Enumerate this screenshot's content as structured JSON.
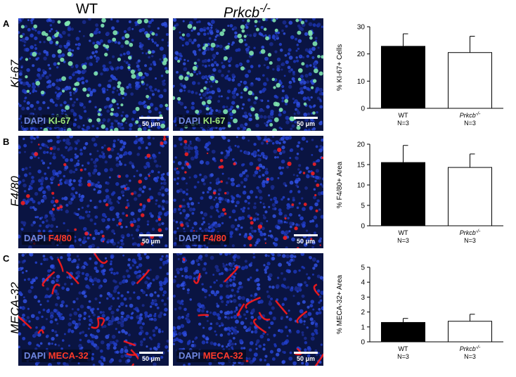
{
  "columns": [
    {
      "label": "WT",
      "italic": false
    },
    {
      "label_base": "Prkcb",
      "label_sup": "-/-",
      "italic": true
    }
  ],
  "rows": [
    {
      "letter": "A",
      "row_label": "Ki-67",
      "stain_dapi": "DAPI",
      "stain_marker": "KI-67",
      "marker_color": "green"
    },
    {
      "letter": "B",
      "row_label": "F4/80",
      "stain_dapi": "DAPI",
      "stain_marker": "F4/80",
      "marker_color": "red"
    },
    {
      "letter": "C",
      "row_label": "MECA-32",
      "stain_dapi": "DAPI",
      "stain_marker": "MECA-32",
      "marker_color": "red"
    }
  ],
  "scale_bar_label": "50 μm",
  "chart_data": [
    {
      "type": "bar",
      "ylabel": "% KI-67+ Cells",
      "ylim": [
        0,
        30
      ],
      "yticks": [
        0,
        10,
        20,
        30
      ],
      "categories": [
        {
          "name": "WT",
          "sup": "",
          "n": "N=3",
          "italic": false
        },
        {
          "name": "Prkcb",
          "sup": "-/-",
          "n": "N=3",
          "italic": true
        }
      ],
      "values": [
        22.8,
        20.5
      ],
      "errors": [
        4.6,
        6.0
      ],
      "fills": [
        "#000000",
        "#ffffff"
      ]
    },
    {
      "type": "bar",
      "ylabel": "% F4/80+ Area",
      "ylim": [
        0,
        20
      ],
      "yticks": [
        0,
        5,
        10,
        15,
        20
      ],
      "categories": [
        {
          "name": "WT",
          "sup": "",
          "n": "N=3",
          "italic": false
        },
        {
          "name": "Prkcb",
          "sup": "-/-",
          "n": "N=3",
          "italic": true
        }
      ],
      "values": [
        15.5,
        14.3
      ],
      "errors": [
        4.2,
        3.3
      ],
      "fills": [
        "#000000",
        "#ffffff"
      ]
    },
    {
      "type": "bar",
      "ylabel": "% MECA-32+ Area",
      "ylim": [
        0,
        5
      ],
      "yticks": [
        0,
        1,
        2,
        3,
        4,
        5
      ],
      "categories": [
        {
          "name": "WT",
          "sup": "",
          "n": "N=3",
          "italic": false
        },
        {
          "name": "Prkcb",
          "sup": "-/-",
          "n": "N=3",
          "italic": true
        }
      ],
      "values": [
        1.3,
        1.38
      ],
      "errors": [
        0.27,
        0.47
      ],
      "fills": [
        "#000000",
        "#ffffff"
      ]
    }
  ]
}
